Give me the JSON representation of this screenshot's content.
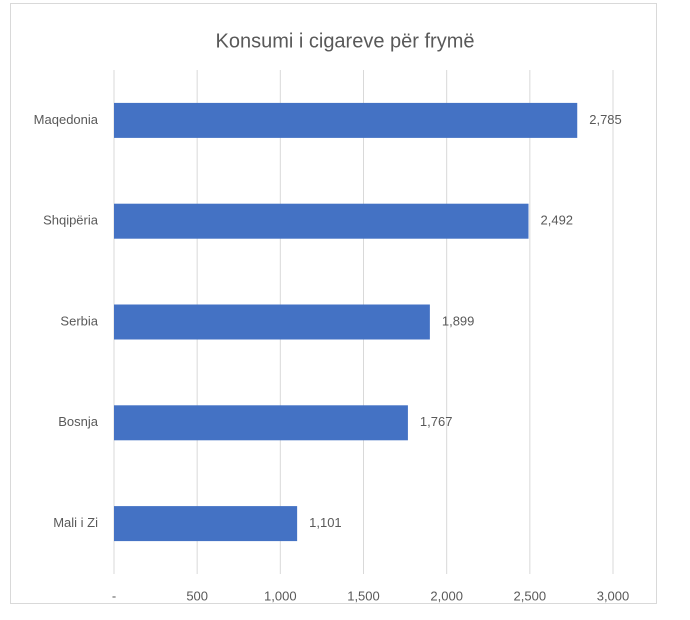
{
  "chart_data": {
    "type": "hbar",
    "title": "Konsumi i cigareve për frymë",
    "categories": [
      "Maqedonia",
      "Shqipëria",
      "Serbia",
      "Bosnja",
      "Mali i Zi"
    ],
    "values": [
      2785,
      2492,
      1899,
      1767,
      1101
    ],
    "value_labels": [
      "2,785",
      "2,492",
      "1,899",
      "1,767",
      "1,101"
    ],
    "color": "#4472c4",
    "xlim": [
      0,
      3000
    ],
    "xticks": [
      {
        "value": 0,
        "label": "-"
      },
      500,
      {
        "value": 1000,
        "label": "1,000"
      },
      {
        "value": 1500,
        "label": "1,500"
      },
      {
        "value": 2000,
        "label": "2,000"
      },
      {
        "value": 2500,
        "label": "2,500"
      },
      {
        "value": 3000,
        "label": "3,000"
      }
    ],
    "grid": true
  }
}
